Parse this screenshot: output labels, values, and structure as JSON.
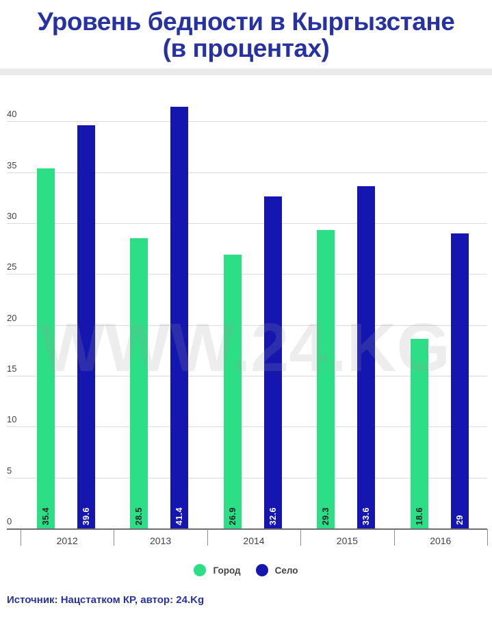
{
  "header": {
    "title_line1": "Уровень бедности в Кыргызстане",
    "title_line2": "(в процентах)"
  },
  "watermark_text": "WWW.24.KG",
  "chart_data": {
    "type": "bar",
    "title": "Уровень бедности в Кыргызстане (в процентах)",
    "categories": [
      "2012",
      "2013",
      "2014",
      "2015",
      "2016"
    ],
    "series": [
      {
        "name": "Город",
        "color": "#2CDE85",
        "value_label_color": "#222222",
        "values": [
          35.4,
          28.5,
          26.9,
          29.3,
          18.6
        ]
      },
      {
        "name": "Село",
        "color": "#1516B0",
        "value_label_color": "#ffffff",
        "values": [
          39.6,
          41.4,
          32.6,
          33.6,
          29
        ]
      }
    ],
    "xlabel": "",
    "ylabel": "",
    "yticks": [
      0,
      5,
      10,
      15,
      20,
      25,
      30,
      35,
      40
    ],
    "ylim": [
      0,
      43
    ],
    "grid": true,
    "legend_position": "bottom"
  },
  "colors": {
    "title": "#2732A2",
    "footer": "#2732A2",
    "axis": "#6E6E6E",
    "gridline": "#DADADA",
    "tick_label": "#424242"
  },
  "footer": {
    "source_text": "Источник: Нацстатком КР, автор: 24.Kg"
  }
}
